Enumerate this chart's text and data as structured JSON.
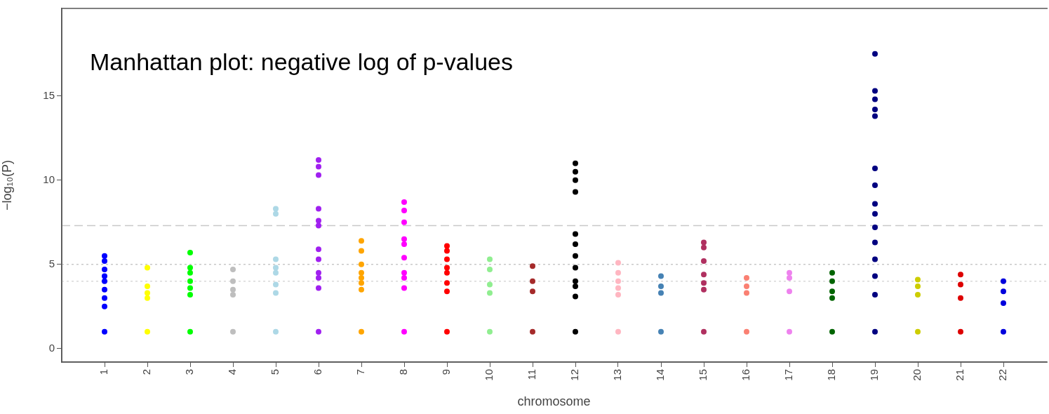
{
  "chart_data": {
    "type": "scatter",
    "title": "Manhattan plot: negative log of p-values",
    "xlabel": "chromosome",
    "ylabel": "−log₁₀(P)",
    "categories": [
      "1",
      "2",
      "3",
      "4",
      "5",
      "6",
      "7",
      "8",
      "9",
      "10",
      "11",
      "12",
      "13",
      "14",
      "15",
      "16",
      "17",
      "18",
      "19",
      "20",
      "21",
      "22"
    ],
    "ylim": [
      -0.8,
      20.2
    ],
    "yticks": [
      0,
      5,
      10,
      15
    ],
    "grid": false,
    "legend": false,
    "marker": "circle",
    "ref_lines": [
      {
        "axis": "y",
        "value": 7.3,
        "color": "#c8c8c8",
        "line_style": "dashed"
      },
      {
        "axis": "y",
        "value": 5,
        "color": "#c8c8c8",
        "line_style": "dotted"
      },
      {
        "axis": "y",
        "value": 4,
        "color": "#d8d8d8",
        "line_style": "dotted"
      }
    ],
    "series": [
      {
        "color": "#0000ff",
        "x": [
          "1",
          "1",
          "1",
          "1",
          "1",
          "1",
          "1",
          "1",
          "1"
        ],
        "values": [
          1.0,
          2.5,
          3.0,
          3.5,
          4.0,
          4.3,
          4.7,
          5.2,
          5.5
        ]
      },
      {
        "color": "#ffff00",
        "x": [
          "2",
          "2",
          "2",
          "2",
          "2"
        ],
        "values": [
          1.0,
          3.0,
          3.3,
          3.7,
          4.8
        ]
      },
      {
        "color": "#00ff00",
        "x": [
          "3",
          "3",
          "3",
          "3",
          "3",
          "3",
          "3"
        ],
        "values": [
          1.0,
          3.2,
          3.6,
          4.0,
          4.5,
          4.8,
          5.7
        ]
      },
      {
        "color": "#bebebe",
        "x": [
          "4",
          "4",
          "4",
          "4",
          "4"
        ],
        "values": [
          1.0,
          3.2,
          3.5,
          4.0,
          4.7
        ]
      },
      {
        "color": "#add8e6",
        "x": [
          "5",
          "5",
          "5",
          "5",
          "5",
          "5",
          "5",
          "5"
        ],
        "values": [
          3.3,
          3.8,
          4.5,
          4.8,
          5.3,
          8.0,
          8.3,
          1.0
        ]
      },
      {
        "color": "#a020f0",
        "x": [
          "6",
          "6",
          "6",
          "6",
          "6",
          "6",
          "6",
          "6",
          "6",
          "6",
          "6",
          "6"
        ],
        "values": [
          3.6,
          4.2,
          4.5,
          5.3,
          5.9,
          7.3,
          7.6,
          8.3,
          10.3,
          10.8,
          11.2,
          1.0
        ]
      },
      {
        "color": "#ffa500",
        "x": [
          "7",
          "7",
          "7",
          "7",
          "7",
          "7",
          "7",
          "7"
        ],
        "values": [
          3.5,
          3.9,
          4.2,
          4.5,
          5.0,
          5.8,
          6.4,
          1.0
        ]
      },
      {
        "color": "#ff00ff",
        "x": [
          "8",
          "8",
          "8",
          "8",
          "8",
          "8",
          "8",
          "8",
          "8",
          "8"
        ],
        "values": [
          1.0,
          3.6,
          4.2,
          4.5,
          5.4,
          6.2,
          6.5,
          7.5,
          8.2,
          8.7
        ]
      },
      {
        "color": "#ff0000",
        "x": [
          "9",
          "9",
          "9",
          "9",
          "9",
          "9",
          "9",
          "9"
        ],
        "values": [
          3.4,
          3.9,
          4.5,
          4.8,
          5.3,
          5.8,
          6.1,
          1.0
        ]
      },
      {
        "color": "#90ee90",
        "x": [
          "10",
          "10",
          "10",
          "10",
          "10"
        ],
        "values": [
          3.3,
          3.8,
          4.7,
          5.3,
          1.0
        ]
      },
      {
        "color": "#a52a2a",
        "x": [
          "11",
          "11",
          "11",
          "11"
        ],
        "values": [
          1.0,
          3.4,
          4.0,
          4.9
        ]
      },
      {
        "color": "#000000",
        "x": [
          "12",
          "12",
          "12",
          "12",
          "12",
          "12",
          "12",
          "12",
          "12",
          "12",
          "12",
          "12"
        ],
        "values": [
          3.1,
          3.7,
          4.0,
          4.8,
          5.5,
          6.2,
          6.8,
          9.3,
          10.0,
          10.5,
          11.0,
          1.0
        ]
      },
      {
        "color": "#ffb6c1",
        "x": [
          "13",
          "13",
          "13",
          "13",
          "13",
          "13"
        ],
        "values": [
          3.2,
          3.6,
          4.0,
          4.5,
          5.1,
          1.0
        ]
      },
      {
        "color": "#4682b4",
        "x": [
          "14",
          "14",
          "14",
          "14"
        ],
        "values": [
          3.3,
          3.7,
          4.3,
          1.0
        ]
      },
      {
        "color": "#b03060",
        "x": [
          "15",
          "15",
          "15",
          "15",
          "15",
          "15",
          "15"
        ],
        "values": [
          3.5,
          3.9,
          4.4,
          5.2,
          6.0,
          6.3,
          1.0
        ]
      },
      {
        "color": "#fa8072",
        "x": [
          "16",
          "16",
          "16",
          "16"
        ],
        "values": [
          3.3,
          3.7,
          4.2,
          1.0
        ]
      },
      {
        "color": "#ee82ee",
        "x": [
          "17",
          "17",
          "17",
          "17"
        ],
        "values": [
          1.0,
          3.4,
          4.2,
          4.5
        ]
      },
      {
        "color": "#006400",
        "x": [
          "18",
          "18",
          "18",
          "18",
          "18"
        ],
        "values": [
          3.0,
          3.4,
          4.0,
          4.5,
          1.0
        ]
      },
      {
        "color": "#000080",
        "x": [
          "19",
          "19",
          "19",
          "19",
          "19",
          "19",
          "19",
          "19",
          "19",
          "19",
          "19",
          "19",
          "19",
          "19",
          "19"
        ],
        "values": [
          3.2,
          4.3,
          5.3,
          6.3,
          7.2,
          8.0,
          8.6,
          9.7,
          10.7,
          13.8,
          14.2,
          14.8,
          15.3,
          17.5,
          1.0
        ]
      },
      {
        "color": "#cdcd00",
        "x": [
          "20",
          "20",
          "20",
          "20"
        ],
        "values": [
          3.2,
          3.7,
          4.1,
          1.0
        ]
      },
      {
        "color": "#dd0000",
        "x": [
          "21",
          "21",
          "21",
          "21"
        ],
        "values": [
          3.0,
          3.8,
          4.4,
          1.0
        ]
      },
      {
        "color": "#0000dd",
        "x": [
          "22",
          "22",
          "22",
          "22"
        ],
        "values": [
          2.7,
          3.4,
          4.0,
          1.0
        ]
      }
    ]
  }
}
